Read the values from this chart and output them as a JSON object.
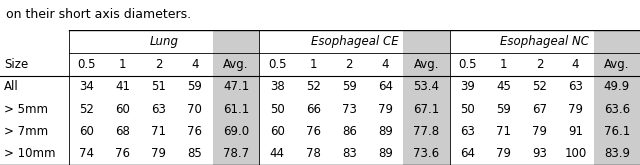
{
  "caption": "on their short axis diameters.",
  "rows": [
    {
      "label": "All",
      "lung": [
        "34",
        "41",
        "51",
        "59",
        "47.1"
      ],
      "eso_ce": [
        "38",
        "52",
        "59",
        "64",
        "53.4"
      ],
      "eso_nc": [
        "39",
        "45",
        "52",
        "63",
        "49.9"
      ]
    },
    {
      "label": "> 5mm",
      "lung": [
        "52",
        "60",
        "63",
        "70",
        "61.1"
      ],
      "eso_ce": [
        "50",
        "66",
        "73",
        "79",
        "67.1"
      ],
      "eso_nc": [
        "50",
        "59",
        "67",
        "79",
        "63.6"
      ]
    },
    {
      "label": "> 7mm",
      "lung": [
        "60",
        "68",
        "71",
        "76",
        "69.0"
      ],
      "eso_ce": [
        "60",
        "76",
        "86",
        "89",
        "77.8"
      ],
      "eso_nc": [
        "63",
        "71",
        "79",
        "91",
        "76.1"
      ]
    },
    {
      "label": "> 10mm",
      "lung": [
        "74",
        "76",
        "79",
        "85",
        "78.7"
      ],
      "eso_ce": [
        "44",
        "78",
        "83",
        "89",
        "73.6"
      ],
      "eso_nc": [
        "64",
        "79",
        "93",
        "100",
        "83.9"
      ]
    }
  ],
  "avg_bg_color": "#cccccc",
  "font_size": 8.5,
  "caption_font_size": 9.0
}
